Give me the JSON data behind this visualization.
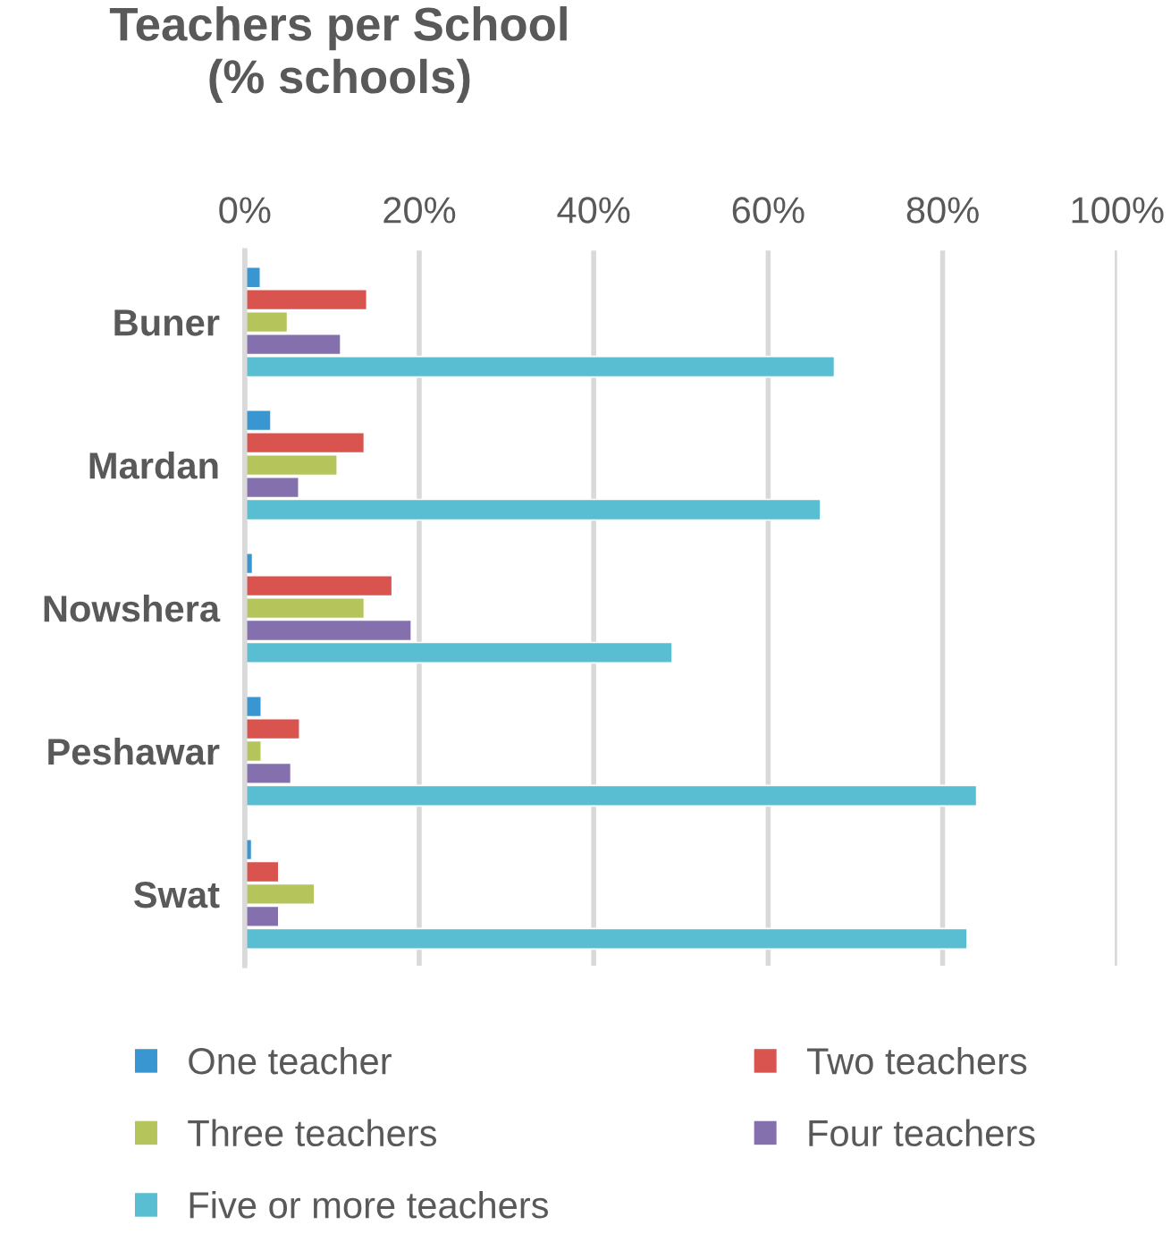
{
  "chart_data": {
    "type": "bar",
    "orientation": "horizontal",
    "title": "Teachers per School\n(% schools)",
    "categories": [
      "Buner",
      "Mardan",
      "Nowshera",
      "Peshawar",
      "Swat"
    ],
    "series": [
      {
        "name": "One teacher",
        "color": "#3a96d0",
        "values": [
          1.8,
          3.0,
          0.9,
          1.9,
          0.8
        ]
      },
      {
        "name": "Two teachers",
        "color": "#d9534f",
        "values": [
          14.0,
          13.7,
          16.9,
          6.3,
          3.9
        ]
      },
      {
        "name": "Three teachers",
        "color": "#b5c55c",
        "values": [
          4.9,
          10.6,
          13.7,
          1.9,
          8.0
        ]
      },
      {
        "name": "Four teachers",
        "color": "#8570ae",
        "values": [
          11.0,
          6.2,
          19.1,
          5.3,
          3.9
        ]
      },
      {
        "name": "Five or more teachers",
        "color": "#5abed2",
        "values": [
          67.6,
          66.0,
          49.0,
          83.9,
          82.8
        ]
      }
    ],
    "xlim": [
      0,
      100
    ],
    "xticks": [
      {
        "value": 0,
        "label": "0%"
      },
      {
        "value": 20,
        "label": "20%"
      },
      {
        "value": 40,
        "label": "40%"
      },
      {
        "value": 60,
        "label": "60%"
      },
      {
        "value": 80,
        "label": "80%"
      },
      {
        "value": 100,
        "label": "100%"
      }
    ],
    "grid": "x",
    "legend": "bottom"
  }
}
